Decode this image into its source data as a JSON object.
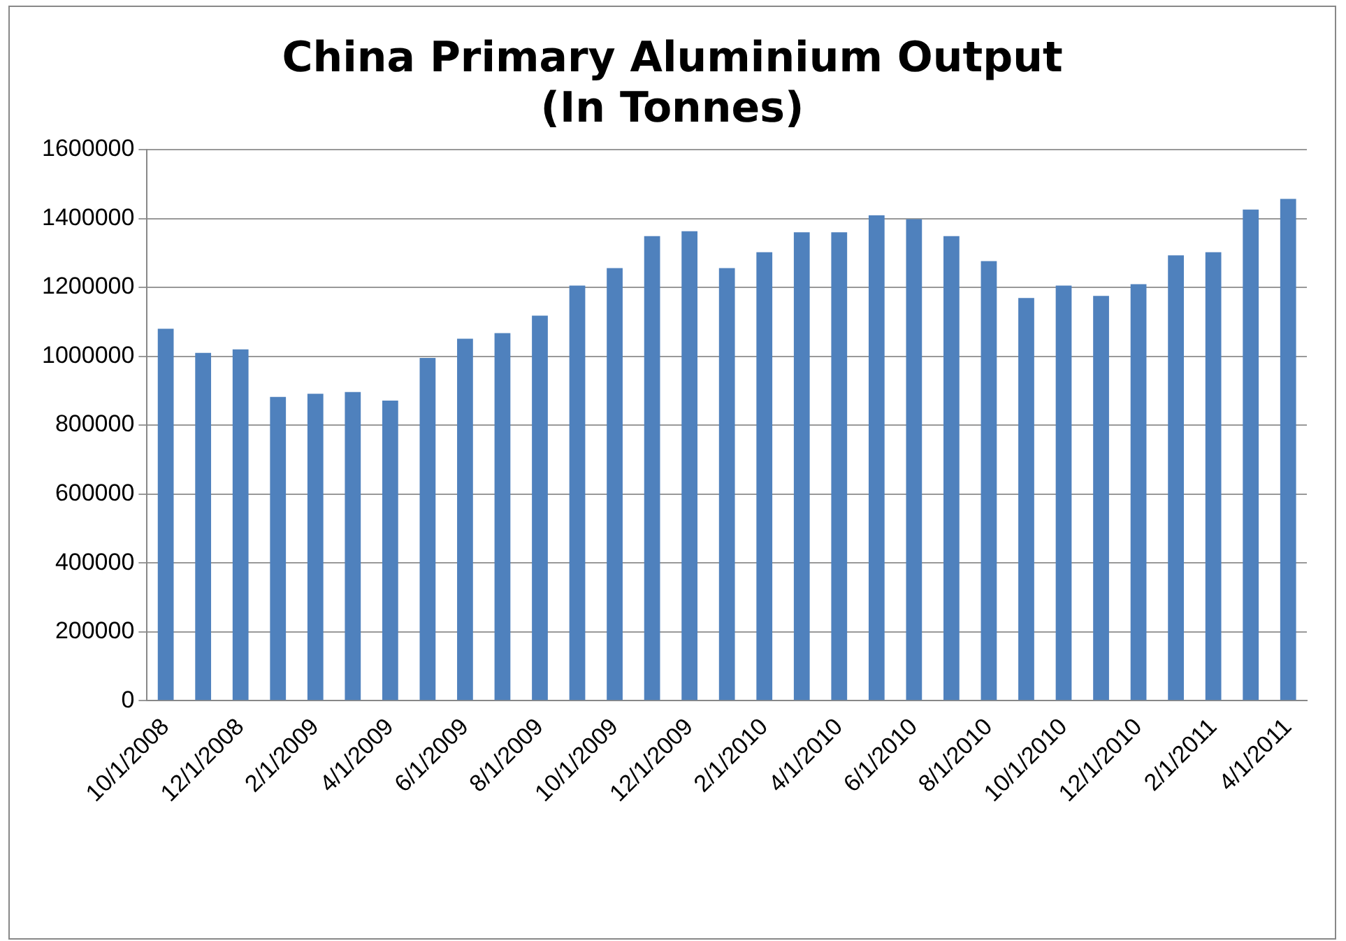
{
  "chart_data": {
    "type": "bar",
    "title": "China Primary Aluminium Output\n(In Tonnes)",
    "categories": [
      "10/1/2008",
      null,
      "12/1/2008",
      null,
      "2/1/2009",
      null,
      "4/1/2009",
      null,
      "6/1/2009",
      null,
      "8/1/2009",
      null,
      "10/1/2009",
      null,
      "12/1/2009",
      null,
      "2/1/2010",
      null,
      "4/1/2010",
      null,
      "6/1/2010",
      null,
      "8/1/2010",
      null,
      "10/1/2010",
      null,
      "12/1/2010",
      null,
      "2/1/2011",
      null,
      "4/1/2011"
    ],
    "values": [
      1080000,
      1010000,
      1020000,
      882000,
      891000,
      896000,
      871000,
      995000,
      1051000,
      1067000,
      1118000,
      1205000,
      1256000,
      1349000,
      1363000,
      1256000,
      1302000,
      1360000,
      1360000,
      1409000,
      1398000,
      1349000,
      1276000,
      1169000,
      1205000,
      1175000,
      1209000,
      1293000,
      1302000,
      1426000,
      1457000
    ],
    "color": "#4f81bd",
    "ylim": [
      0,
      1600000
    ],
    "yticks": [
      0,
      200000,
      400000,
      600000,
      800000,
      1000000,
      1200000,
      1400000,
      1600000
    ],
    "grid": "y",
    "legend": false
  }
}
